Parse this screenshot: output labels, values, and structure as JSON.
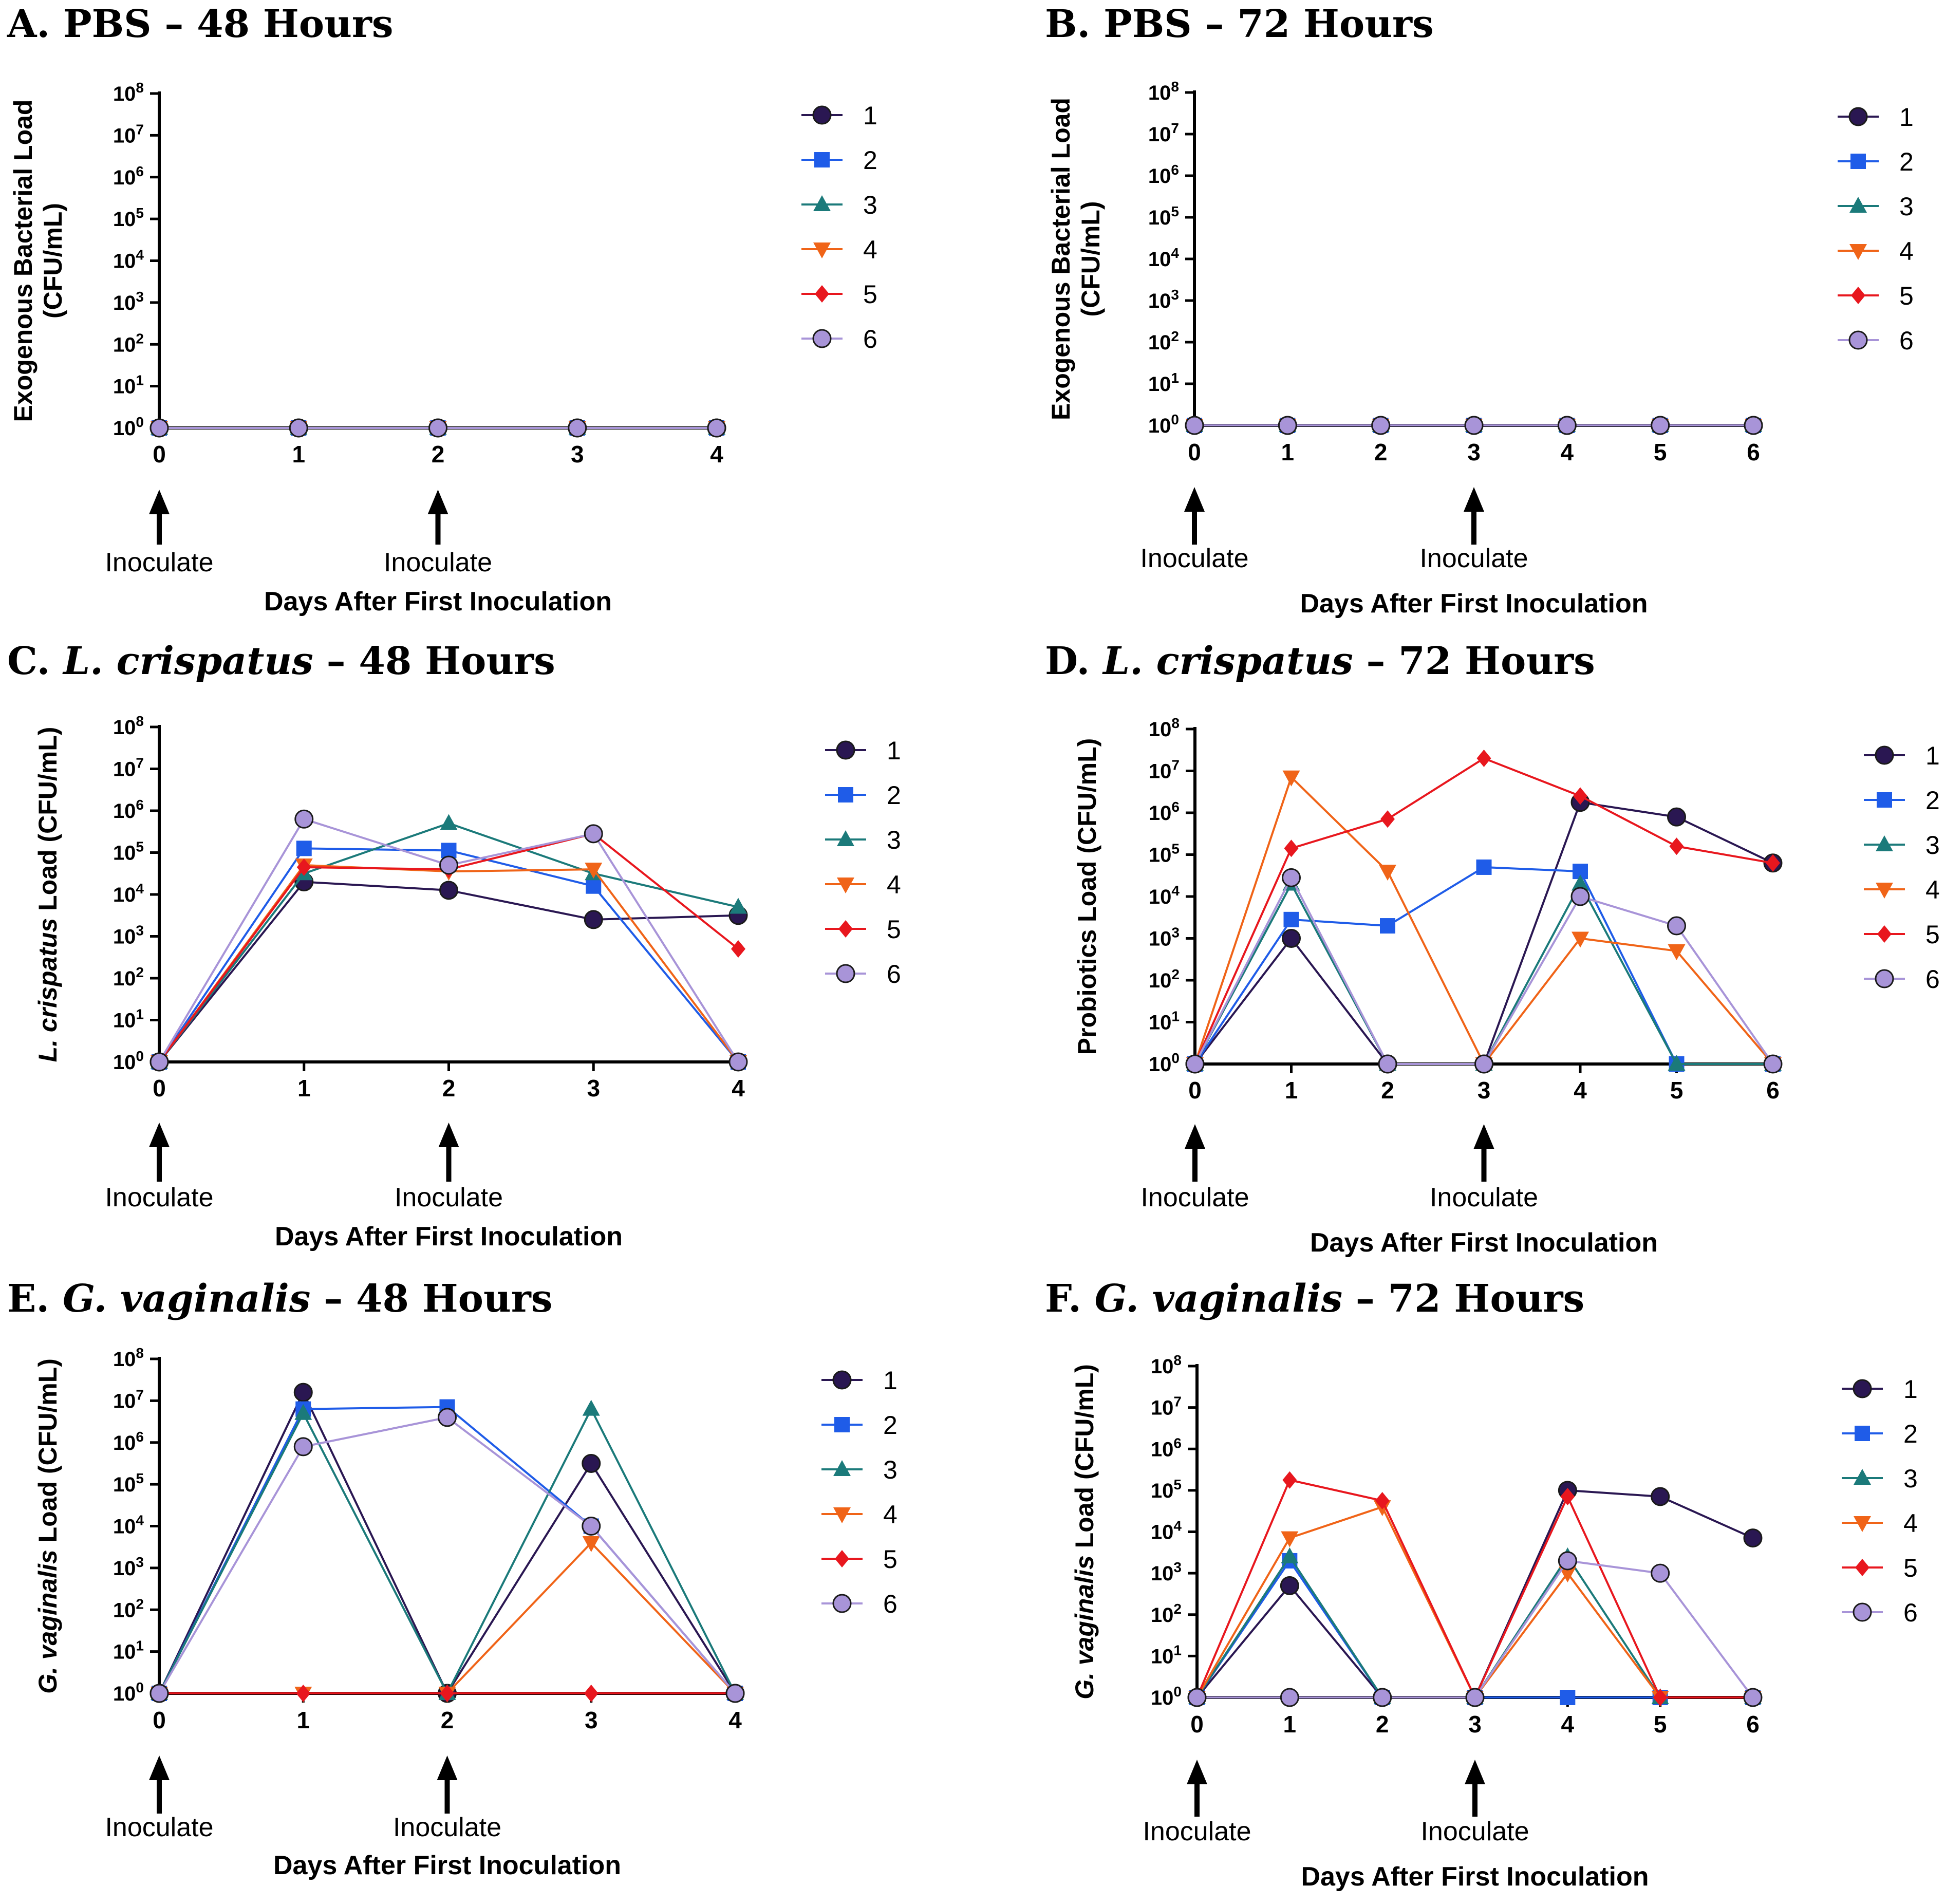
{
  "chart_data": [
    {
      "type": "line",
      "title": {
        "prefix": "A. ",
        "species": "PBS",
        "suffix": " – 48 Hours",
        "italic_species": false
      },
      "ylabel": {
        "lines": [
          "Exogenous Bacterial Load",
          "(CFU/mL)"
        ]
      },
      "xlabel": "Days After First Inoculation",
      "x": [
        0,
        1,
        2,
        3,
        4
      ],
      "xlim": [
        0,
        4
      ],
      "yscale": "log10",
      "ylim_exponent": [
        0,
        8
      ],
      "annotations": [
        {
          "x": 0,
          "text": "Inoculate"
        },
        {
          "x": 2,
          "text": "Inoculate"
        }
      ],
      "series": [
        {
          "name": "1",
          "log10_values": [
            0,
            0,
            0,
            0,
            0
          ]
        },
        {
          "name": "2",
          "log10_values": [
            0,
            0,
            0,
            0,
            0
          ]
        },
        {
          "name": "3",
          "log10_values": [
            0,
            0,
            0,
            0,
            0
          ]
        },
        {
          "name": "4",
          "log10_values": [
            0,
            0,
            0,
            0,
            0
          ]
        },
        {
          "name": "5",
          "log10_values": [
            0,
            0,
            0,
            0,
            0
          ]
        },
        {
          "name": "6",
          "log10_values": [
            0,
            0,
            0,
            0,
            0
          ]
        }
      ]
    },
    {
      "type": "line",
      "title": {
        "prefix": "B. ",
        "species": "PBS",
        "suffix": " – 72 Hours",
        "italic_species": false
      },
      "ylabel": {
        "lines": [
          "Exogenous Bacterial Load",
          "(CFU/mL)"
        ]
      },
      "xlabel": "Days After First Inoculation",
      "x": [
        0,
        1,
        2,
        3,
        4,
        5,
        6
      ],
      "xlim": [
        0,
        6
      ],
      "yscale": "log10",
      "ylim_exponent": [
        0,
        8
      ],
      "annotations": [
        {
          "x": 0,
          "text": "Inoculate"
        },
        {
          "x": 3,
          "text": "Inoculate"
        }
      ],
      "series": [
        {
          "name": "1",
          "log10_values": [
            0,
            0,
            0,
            0,
            0,
            0,
            0
          ]
        },
        {
          "name": "2",
          "log10_values": [
            0,
            0,
            0,
            0,
            0,
            0,
            0
          ]
        },
        {
          "name": "3",
          "log10_values": [
            0,
            0,
            0,
            0,
            0,
            0,
            0
          ]
        },
        {
          "name": "4",
          "log10_values": [
            0,
            0,
            0,
            0,
            0,
            0,
            0
          ]
        },
        {
          "name": "5",
          "log10_values": [
            0,
            0,
            0,
            0,
            0,
            0,
            0
          ]
        },
        {
          "name": "6",
          "log10_values": [
            0,
            0,
            0,
            0,
            0,
            0,
            0
          ]
        }
      ]
    },
    {
      "type": "line",
      "title": {
        "prefix": "C. ",
        "species": "L. crispatus",
        "suffix": " – 48 Hours",
        "italic_species": true
      },
      "ylabel": {
        "italic": "L. crispatus",
        "rest": " Load (CFU/mL)"
      },
      "xlabel": "Days After First Inoculation",
      "x": [
        0,
        1,
        2,
        3,
        4
      ],
      "xlim": [
        0,
        4
      ],
      "yscale": "log10",
      "ylim_exponent": [
        0,
        8
      ],
      "annotations": [
        {
          "x": 0,
          "text": "Inoculate"
        },
        {
          "x": 2,
          "text": "Inoculate"
        }
      ],
      "series": [
        {
          "name": "1",
          "log10_values": [
            0,
            4.3,
            4.1,
            3.4,
            3.5
          ]
        },
        {
          "name": "2",
          "log10_values": [
            0,
            5.1,
            5.05,
            4.2,
            0
          ]
        },
        {
          "name": "3",
          "log10_values": [
            0,
            4.5,
            5.7,
            4.5,
            3.7
          ]
        },
        {
          "name": "4",
          "log10_values": [
            0,
            4.7,
            4.55,
            4.6,
            0
          ]
        },
        {
          "name": "5",
          "log10_values": [
            0,
            4.65,
            4.6,
            5.45,
            2.7
          ]
        },
        {
          "name": "6",
          "log10_values": [
            0,
            5.8,
            4.7,
            5.45,
            0
          ]
        }
      ]
    },
    {
      "type": "line",
      "title": {
        "prefix": "D. ",
        "species": "L. crispatus",
        "suffix": " – 72 Hours",
        "italic_species": true
      },
      "ylabel": {
        "lines": [
          "Probiotics Load (CFU/mL)"
        ]
      },
      "xlabel": "Days After First Inoculation",
      "x": [
        0,
        1,
        2,
        3,
        4,
        5,
        6
      ],
      "xlim": [
        0,
        6
      ],
      "yscale": "log10",
      "ylim_exponent": [
        0,
        8
      ],
      "annotations": [
        {
          "x": 0,
          "text": "Inoculate"
        },
        {
          "x": 3,
          "text": "Inoculate"
        }
      ],
      "series": [
        {
          "name": "1",
          "log10_values": [
            0,
            3.0,
            0,
            0,
            6.25,
            5.9,
            4.8
          ]
        },
        {
          "name": "2",
          "log10_values": [
            0,
            3.45,
            3.3,
            4.7,
            4.6,
            0,
            0
          ]
        },
        {
          "name": "3",
          "log10_values": [
            0,
            4.3,
            0,
            0,
            4.3,
            0,
            0
          ]
        },
        {
          "name": "4",
          "log10_values": [
            0,
            6.85,
            4.6,
            0,
            3.0,
            2.7,
            0
          ]
        },
        {
          "name": "5",
          "log10_values": [
            0,
            5.15,
            5.85,
            7.3,
            6.4,
            5.2,
            4.8
          ]
        },
        {
          "name": "6",
          "log10_values": [
            0,
            4.45,
            0,
            0,
            4.0,
            3.3,
            0
          ]
        }
      ]
    },
    {
      "type": "line",
      "title": {
        "prefix": "E. ",
        "species": "G. vaginalis",
        "suffix": " – 48 Hours",
        "italic_species": true
      },
      "ylabel": {
        "italic": "G. vaginalis",
        "rest": " Load (CFU/mL)"
      },
      "xlabel": "Days After First Inoculation",
      "x": [
        0,
        1,
        2,
        3,
        4
      ],
      "xlim": [
        0,
        4
      ],
      "yscale": "log10",
      "ylim_exponent": [
        0,
        8
      ],
      "annotations": [
        {
          "x": 0,
          "text": "Inoculate"
        },
        {
          "x": 2,
          "text": "Inoculate"
        }
      ],
      "series": [
        {
          "name": "1",
          "log10_values": [
            0,
            7.2,
            0,
            5.5,
            0
          ]
        },
        {
          "name": "2",
          "log10_values": [
            0,
            6.8,
            6.85,
            4.0,
            0
          ]
        },
        {
          "name": "3",
          "log10_values": [
            0,
            6.7,
            0,
            6.8,
            0
          ]
        },
        {
          "name": "4",
          "log10_values": [
            0,
            0,
            0,
            3.6,
            0
          ]
        },
        {
          "name": "5",
          "log10_values": [
            0,
            0,
            0,
            0,
            0
          ]
        },
        {
          "name": "6",
          "log10_values": [
            0,
            5.9,
            6.6,
            4.0,
            0
          ]
        }
      ]
    },
    {
      "type": "line",
      "title": {
        "prefix": "F. ",
        "species": "G. vaginalis",
        "suffix": " – 72 Hours",
        "italic_species": true
      },
      "ylabel": {
        "italic": "G. vaginalis",
        "rest": " Load (CFU/mL)"
      },
      "xlabel": "Days After First Inoculation",
      "x": [
        0,
        1,
        2,
        3,
        4,
        5,
        6
      ],
      "xlim": [
        0,
        6
      ],
      "yscale": "log10",
      "ylim_exponent": [
        0,
        8
      ],
      "annotations": [
        {
          "x": 0,
          "text": "Inoculate"
        },
        {
          "x": 3,
          "text": "Inoculate"
        }
      ],
      "series": [
        {
          "name": "1",
          "log10_values": [
            0,
            2.7,
            0,
            0,
            5.0,
            4.85,
            3.85
          ]
        },
        {
          "name": "2",
          "log10_values": [
            0,
            3.3,
            0,
            0,
            0,
            0,
            0
          ]
        },
        {
          "name": "3",
          "log10_values": [
            0,
            3.4,
            0,
            0,
            3.4,
            0,
            0
          ]
        },
        {
          "name": "4",
          "log10_values": [
            0,
            3.85,
            4.6,
            0,
            3.0,
            0,
            0
          ]
        },
        {
          "name": "5",
          "log10_values": [
            0,
            5.25,
            4.75,
            0,
            4.85,
            0,
            0
          ]
        },
        {
          "name": "6",
          "log10_values": [
            0,
            0,
            0,
            0,
            3.3,
            3.0,
            0
          ]
        }
      ]
    }
  ],
  "series_styles": [
    {
      "name": "1",
      "color": "#2a1752",
      "marker": "circle"
    },
    {
      "name": "2",
      "color": "#1f5ce8",
      "marker": "square"
    },
    {
      "name": "3",
      "color": "#1b7a7a",
      "marker": "triangle-up"
    },
    {
      "name": "4",
      "color": "#f06418",
      "marker": "triangle-down"
    },
    {
      "name": "5",
      "color": "#e8171e",
      "marker": "diamond"
    },
    {
      "name": "6",
      "color": "#a894d8",
      "marker": "circle"
    }
  ],
  "y_tick_base": "10"
}
